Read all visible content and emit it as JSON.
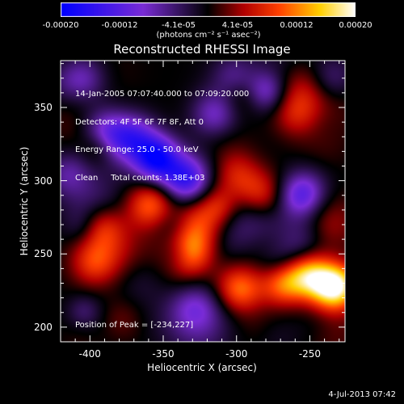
{
  "chart_data": {
    "type": "heatmap",
    "title": "Reconstructed RHESSI Image",
    "xlabel": "Heliocentric X (arcsec)",
    "ylabel": "Heliocentric Y (arcsec)",
    "xlim": [
      -420,
      -226
    ],
    "ylim": [
      190,
      382
    ],
    "x_ticks": [
      "-400",
      "-350",
      "-300",
      "-250"
    ],
    "x_tick_values": [
      -400,
      -350,
      -300,
      -250
    ],
    "y_ticks": [
      "200",
      "250",
      "300",
      "350"
    ],
    "y_tick_values": [
      200,
      250,
      300,
      350
    ],
    "colorbar": {
      "range": [
        -0.0002,
        0.0002
      ],
      "tick_labels": [
        "-0.00020",
        "-0.00012",
        "-4.1e-05",
        "4.1e-05",
        "0.00012",
        "0.00020"
      ],
      "units": "(photons cm⁻² s⁻¹ asec⁻²)",
      "colormap": [
        "#0000ff",
        "#7a2cd6",
        "#000000",
        "#b00000",
        "#ff4000",
        "#ffd000",
        "#ffffff"
      ]
    },
    "annotations": [
      "14-Jan-2005 07:07:40.000 to 07:09:20.000",
      "Detectors: 4F 5F 6F 7F 8F, Att 0",
      "Energy Range: 25.0 - 50.0 keV",
      "Clean     Total counts: 1.38E+03"
    ],
    "peak_label": "Position of Peak = [-234,227]",
    "peak": [
      -234,
      227
    ],
    "features_note_values": [
      {
        "x": -233,
        "y": 227,
        "value": 0.0002
      },
      {
        "x": -250,
        "y": 235,
        "value": 0.00015
      },
      {
        "x": -268,
        "y": 230,
        "value": 0.00012
      },
      {
        "x": -298,
        "y": 226,
        "value": 0.00011
      },
      {
        "x": -332,
        "y": 252,
        "value": 0.0001
      },
      {
        "x": -360,
        "y": 283,
        "value": 9e-05
      },
      {
        "x": -392,
        "y": 268,
        "value": 8e-05
      },
      {
        "x": -398,
        "y": 244,
        "value": 7e-05
      },
      {
        "x": -300,
        "y": 305,
        "value": 6e-05
      },
      {
        "x": -285,
        "y": 292,
        "value": 7e-05
      },
      {
        "x": -325,
        "y": 270,
        "value": 6e-05
      },
      {
        "x": -380,
        "y": 205,
        "value": 4e-05
      },
      {
        "x": -260,
        "y": 345,
        "value": 5e-05
      },
      {
        "x": -355,
        "y": 315,
        "value": -0.00018
      },
      {
        "x": -335,
        "y": 300,
        "value": -0.00014
      },
      {
        "x": -370,
        "y": 330,
        "value": -0.0001
      },
      {
        "x": -390,
        "y": 335,
        "value": -8e-05
      },
      {
        "x": -255,
        "y": 290,
        "value": -0.00012
      },
      {
        "x": -315,
        "y": 345,
        "value": -8e-05
      },
      {
        "x": -405,
        "y": 370,
        "value": -7e-05
      },
      {
        "x": -235,
        "y": 370,
        "value": -6e-05
      },
      {
        "x": -330,
        "y": 215,
        "value": -5e-05
      },
      {
        "x": -415,
        "y": 305,
        "value": -6e-05
      }
    ]
  },
  "timestamp": "4-Jul-2013 07:42"
}
